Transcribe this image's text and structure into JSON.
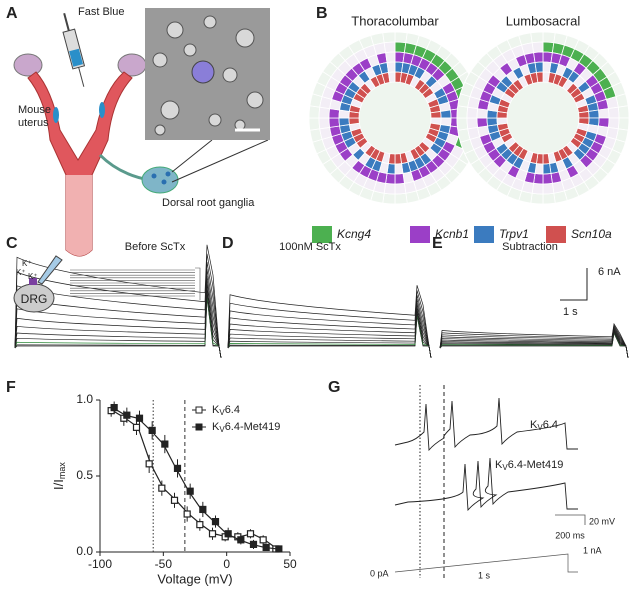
{
  "panel_letters": [
    "A",
    "B",
    "C",
    "D",
    "E",
    "F",
    "G"
  ],
  "panel_a": {
    "labels": [
      "Fast Blue",
      "Mouse",
      "uterus",
      "Dorsal root ganglia"
    ]
  },
  "panel_b": {
    "titles": [
      "Thoracolumbar",
      "Lumbosacral"
    ],
    "legend": [
      {
        "name": "Kcng4",
        "color": "#4cb050"
      },
      {
        "name": "Kcnb1",
        "color": "#9b3fc7"
      },
      {
        "name": "Trpv1",
        "color": "#3b7bbf"
      },
      {
        "name": "Scn10a",
        "color": "#d0504f"
      }
    ]
  },
  "panel_c": {
    "title": "Before ScTx",
    "cell": "DRG",
    "ion": "K⁺"
  },
  "panel_d": {
    "title": "100nM ScTx"
  },
  "panel_e": {
    "title": "Subtraction",
    "scale_y": "6 nA",
    "scale_x": "1 s"
  },
  "panel_f": {
    "type": "line",
    "ylabel": "I/I",
    "ylabel_sub": "max",
    "xlabel": "Voltage (mV)",
    "x": [
      -90,
      -80,
      -70,
      -60,
      -50,
      -40,
      -30,
      -20,
      -10,
      0,
      10,
      20,
      30,
      40
    ],
    "series": [
      {
        "name_parts": [
          "K",
          "V",
          "6.4"
        ],
        "color": "#222222",
        "marker": "open-square",
        "values": [
          0.93,
          0.88,
          0.82,
          0.58,
          0.42,
          0.34,
          0.25,
          0.18,
          0.12,
          0.1,
          0.1,
          0.12,
          0.08,
          0.02
        ],
        "errors": [
          0.04,
          0.05,
          0.05,
          0.06,
          0.05,
          0.05,
          0.05,
          0.04,
          0.04,
          0.03,
          0.03,
          0.03,
          0.03,
          0.02
        ]
      },
      {
        "name_parts": [
          "K",
          "V",
          "6.4-Met419"
        ],
        "color": "#222222",
        "marker": "filled-square",
        "values": [
          0.95,
          0.9,
          0.88,
          0.8,
          0.71,
          0.55,
          0.4,
          0.28,
          0.2,
          0.12,
          0.08,
          0.05,
          0.03,
          0.02
        ],
        "errors": [
          0.04,
          0.05,
          0.05,
          0.06,
          0.06,
          0.06,
          0.05,
          0.05,
          0.04,
          0.04,
          0.03,
          0.03,
          0.02,
          0.02
        ]
      }
    ],
    "vlines": [
      -58,
      -33
    ],
    "xlim": [
      -100,
      50
    ],
    "ylim": [
      0,
      1
    ],
    "xticks": [
      -100,
      -50,
      0,
      50
    ],
    "yticks": [
      {
        "value": 0,
        "label": "0.0"
      },
      {
        "value": 0.5,
        "label": "0.5"
      },
      {
        "value": 1,
        "label": "1.0"
      }
    ]
  },
  "panel_g": {
    "trace_labels": [
      [
        "K",
        "V",
        "6.4"
      ],
      [
        "K",
        "V",
        "6.4-Met419"
      ]
    ],
    "scale_labels": [
      "20 mV",
      "200 ms",
      "1 nA",
      "0 pA",
      "1 s"
    ]
  }
}
